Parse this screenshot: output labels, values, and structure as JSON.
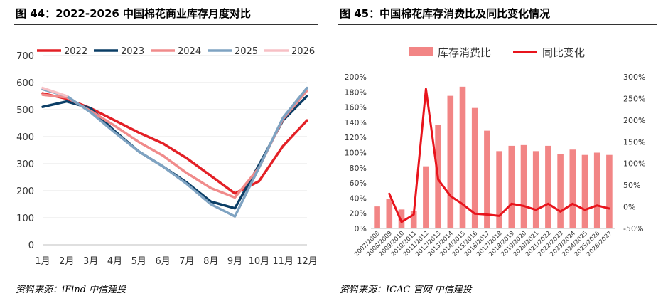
{
  "left_panel": {
    "title": "图 44：2022-2026 中国棉花商业库存月度对比",
    "source": "资料来源：iFind 中信建投"
  },
  "right_panel": {
    "title": "图 45：中国棉花库存消费比及同比变化情况",
    "source": "资料来源：ICAC 官网 中信建投"
  },
  "colors": {
    "s2022": "#e32026",
    "s2023": "#0b3e66",
    "s2024": "#f08b8b",
    "s2025": "#7fa3c2",
    "s2026": "#f7c0c5",
    "bar": "#f28585",
    "line": "#e8141c",
    "axis": "#bfbfbf"
  },
  "chart_data": [
    {
      "type": "line",
      "title": "2022-2026 中国棉花商业库存月度对比",
      "categories": [
        "1月",
        "2月",
        "3月",
        "4月",
        "5月",
        "6月",
        "7月",
        "8月",
        "9月",
        "10月",
        "11月",
        "12月"
      ],
      "ylim": [
        0,
        700
      ],
      "yticks": [
        0,
        100,
        200,
        300,
        400,
        500,
        600,
        700
      ],
      "legend_position": "top",
      "series": [
        {
          "name": "2022",
          "color_key": "s2022",
          "values": [
            560,
            540,
            505,
            460,
            415,
            375,
            320,
            255,
            190,
            235,
            365,
            460
          ]
        },
        {
          "name": "2023",
          "color_key": "s2023",
          "values": [
            510,
            530,
            505,
            420,
            345,
            290,
            230,
            160,
            135,
            295,
            460,
            550
          ]
        },
        {
          "name": "2024",
          "color_key": "s2024",
          "values": [
            555,
            545,
            495,
            440,
            380,
            330,
            265,
            210,
            175,
            285,
            465,
            570
          ]
        },
        {
          "name": "2025",
          "color_key": "s2025",
          "values": [
            575,
            550,
            490,
            415,
            345,
            290,
            225,
            150,
            105,
            285,
            470,
            580
          ]
        },
        {
          "name": "2026",
          "color_key": "s2026",
          "values": [
            580,
            550,
            null,
            null,
            null,
            null,
            null,
            null,
            null,
            null,
            null,
            null
          ]
        }
      ]
    },
    {
      "type": "bar",
      "title": "中国棉花库存消费比及同比变化情况",
      "categories": [
        "2007/2008",
        "2008/2009",
        "2009/2010",
        "2010/2011",
        "2011/2012",
        "2012/2013",
        "2013/2014",
        "2014/2015",
        "2015/2016",
        "2016/2017",
        "2017/2018",
        "2018/2019",
        "2019/2020",
        "2020/2021",
        "2021/2022",
        "2022/2023",
        "2023/2024",
        "2024/2025",
        "2025/2026",
        "2026/2027"
      ],
      "ylim": [
        0,
        200
      ],
      "yticks": [
        "0%",
        "20%",
        "40%",
        "60%",
        "80%",
        "100%",
        "120%",
        "140%",
        "160%",
        "180%",
        "200%"
      ],
      "y2lim": [
        -50,
        300
      ],
      "y2ticks": [
        "-50%",
        "0%",
        "50%",
        "100%",
        "150%",
        "200%",
        "250%",
        "300%"
      ],
      "legend_position": "top",
      "series": [
        {
          "name": "库存消费比",
          "axis": "left",
          "kind": "bar",
          "color_key": "bar",
          "values": [
            29,
            39,
            25,
            23,
            82,
            137,
            175,
            187,
            159,
            129,
            102,
            109,
            110,
            102,
            109,
            98,
            104,
            97,
            100,
            97
          ]
        },
        {
          "name": "同比变化",
          "axis": "right",
          "kind": "line",
          "color_key": "line",
          "values": [
            null,
            30,
            -35,
            -18,
            272,
            63,
            25,
            6,
            -16,
            -18,
            -21,
            7,
            2,
            -7,
            7,
            -11,
            7,
            -7,
            3,
            -4
          ]
        }
      ]
    }
  ]
}
